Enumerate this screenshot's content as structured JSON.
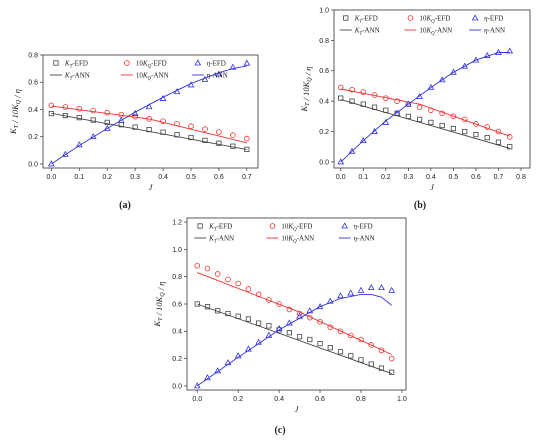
{
  "chart_data": [
    {
      "type": "scatter",
      "caption": "(a)",
      "xlabel": "J",
      "ylabel": "K_T / 10K_Q / η",
      "xlim": [
        -0.03,
        0.74
      ],
      "ylim": [
        -0.03,
        0.8
      ],
      "xticks": [
        "0.0",
        "0.1",
        "0.2",
        "0.3",
        "0.4",
        "0.5",
        "0.6",
        "0.7"
      ],
      "yticks": [
        "0.0",
        "0.2",
        "0.4",
        "0.6",
        "0.8"
      ],
      "grid": false,
      "legend": {
        "position": "top",
        "entries": [
          {
            "label": "K_T-EFD",
            "color": "#444444",
            "marker": "square"
          },
          {
            "label": "10K_Q-EFD",
            "color": "#ee3333",
            "marker": "circle"
          },
          {
            "label": "η-EFD",
            "color": "#3333dd",
            "marker": "triangle"
          },
          {
            "label": "K_T-ANN",
            "color": "#444444",
            "marker": "line"
          },
          {
            "label": "10K_Q-ANN",
            "color": "#ee3333",
            "marker": "line"
          },
          {
            "label": "η-ANN",
            "color": "#3333dd",
            "marker": "line"
          }
        ]
      },
      "series": [
        {
          "name": "K_T-EFD",
          "kind": "points",
          "marker": "square",
          "color": "#444444",
          "x": [
            0.0,
            0.05,
            0.1,
            0.15,
            0.2,
            0.25,
            0.3,
            0.35,
            0.4,
            0.45,
            0.5,
            0.55,
            0.6,
            0.65,
            0.7
          ],
          "y": [
            0.37,
            0.355,
            0.34,
            0.322,
            0.305,
            0.288,
            0.27,
            0.252,
            0.233,
            0.214,
            0.194,
            0.173,
            0.152,
            0.13,
            0.107
          ]
        },
        {
          "name": "K_T-ANN",
          "kind": "line",
          "color": "#444444",
          "x": [
            0.0,
            0.7
          ],
          "y": [
            0.372,
            0.105
          ]
        },
        {
          "name": "10K_Q-EFD",
          "kind": "points",
          "marker": "circle",
          "color": "#ee3333",
          "x": [
            0.0,
            0.05,
            0.1,
            0.15,
            0.2,
            0.25,
            0.3,
            0.35,
            0.4,
            0.45,
            0.5,
            0.55,
            0.6,
            0.65,
            0.7
          ],
          "y": [
            0.43,
            0.418,
            0.405,
            0.391,
            0.377,
            0.362,
            0.347,
            0.331,
            0.314,
            0.296,
            0.277,
            0.256,
            0.234,
            0.211,
            0.186
          ]
        },
        {
          "name": "10K_Q-ANN",
          "kind": "line",
          "color": "#ee3333",
          "x": [
            0.0,
            0.35,
            0.7
          ],
          "y": [
            0.425,
            0.33,
            0.155
          ]
        },
        {
          "name": "η-EFD",
          "kind": "points",
          "marker": "triangle",
          "color": "#3333dd",
          "x": [
            0.0,
            0.05,
            0.1,
            0.15,
            0.2,
            0.25,
            0.3,
            0.35,
            0.4,
            0.45,
            0.5,
            0.55,
            0.6,
            0.65,
            0.7
          ],
          "y": [
            0.0,
            0.07,
            0.14,
            0.2,
            0.26,
            0.32,
            0.37,
            0.42,
            0.48,
            0.53,
            0.58,
            0.62,
            0.66,
            0.71,
            0.74
          ]
        },
        {
          "name": "η-ANN",
          "kind": "line",
          "color": "#3333dd",
          "x": [
            0.0,
            0.1,
            0.2,
            0.3,
            0.4,
            0.5,
            0.6,
            0.65,
            0.7
          ],
          "y": [
            0.0,
            0.135,
            0.26,
            0.38,
            0.49,
            0.59,
            0.67,
            0.7,
            0.72
          ]
        }
      ]
    },
    {
      "type": "scatter",
      "caption": "(b)",
      "xlabel": "J",
      "ylabel": "K_T / 10K_Q / η",
      "xlim": [
        -0.03,
        0.84
      ],
      "ylim": [
        -0.04,
        1.0
      ],
      "xticks": [
        "0.0",
        "0.1",
        "0.2",
        "0.3",
        "0.4",
        "0.5",
        "0.6",
        "0.7",
        "0.8"
      ],
      "yticks": [
        "0.0",
        "0.2",
        "0.4",
        "0.6",
        "0.8",
        "1.0"
      ],
      "grid": false,
      "legend": {
        "position": "top",
        "entries": [
          {
            "label": "K_T-EFD",
            "color": "#444444",
            "marker": "square"
          },
          {
            "label": "10K_Q-EFD",
            "color": "#ee3333",
            "marker": "circle"
          },
          {
            "label": "η-EFD",
            "color": "#3333dd",
            "marker": "triangle"
          },
          {
            "label": "K_T-ANN",
            "color": "#444444",
            "marker": "line"
          },
          {
            "label": "10K_Q-ANN",
            "color": "#ee3333",
            "marker": "line"
          },
          {
            "label": "η-ANN",
            "color": "#3333dd",
            "marker": "line"
          }
        ]
      },
      "series": [
        {
          "name": "K_T-EFD",
          "kind": "points",
          "marker": "square",
          "color": "#444444",
          "x": [
            0.0,
            0.05,
            0.1,
            0.15,
            0.2,
            0.25,
            0.3,
            0.35,
            0.4,
            0.45,
            0.5,
            0.55,
            0.6,
            0.65,
            0.7,
            0.75
          ],
          "y": [
            0.42,
            0.4,
            0.38,
            0.36,
            0.34,
            0.32,
            0.3,
            0.28,
            0.26,
            0.24,
            0.22,
            0.2,
            0.18,
            0.16,
            0.13,
            0.1
          ]
        },
        {
          "name": "K_T-ANN",
          "kind": "line",
          "color": "#444444",
          "x": [
            0.0,
            0.75
          ],
          "y": [
            0.41,
            0.09
          ]
        },
        {
          "name": "10K_Q-EFD",
          "kind": "points",
          "marker": "circle",
          "color": "#ee3333",
          "x": [
            0.0,
            0.05,
            0.1,
            0.15,
            0.2,
            0.25,
            0.3,
            0.35,
            0.4,
            0.45,
            0.5,
            0.55,
            0.6,
            0.65,
            0.7,
            0.75
          ],
          "y": [
            0.49,
            0.475,
            0.46,
            0.44,
            0.42,
            0.4,
            0.38,
            0.36,
            0.34,
            0.32,
            0.3,
            0.28,
            0.25,
            0.23,
            0.2,
            0.165
          ]
        },
        {
          "name": "10K_Q-ANN",
          "kind": "line",
          "color": "#ee3333",
          "x": [
            0.0,
            0.35,
            0.75
          ],
          "y": [
            0.48,
            0.38,
            0.17
          ]
        },
        {
          "name": "η-EFD",
          "kind": "points",
          "marker": "triangle",
          "color": "#3333dd",
          "x": [
            0.0,
            0.05,
            0.1,
            0.15,
            0.2,
            0.25,
            0.3,
            0.35,
            0.4,
            0.45,
            0.5,
            0.55,
            0.6,
            0.65,
            0.7,
            0.75
          ],
          "y": [
            0.0,
            0.07,
            0.14,
            0.2,
            0.26,
            0.32,
            0.38,
            0.43,
            0.49,
            0.54,
            0.59,
            0.63,
            0.67,
            0.7,
            0.72,
            0.73
          ]
        },
        {
          "name": "η-ANN",
          "kind": "line",
          "color": "#3333dd",
          "x": [
            0.0,
            0.1,
            0.2,
            0.3,
            0.4,
            0.5,
            0.6,
            0.7,
            0.75
          ],
          "y": [
            0.0,
            0.14,
            0.27,
            0.38,
            0.49,
            0.59,
            0.67,
            0.72,
            0.72
          ]
        }
      ]
    },
    {
      "type": "scatter",
      "caption": "(c)",
      "xlabel": "J",
      "ylabel": "K_T / 10K_Q / η",
      "xlim": [
        -0.05,
        1.02
      ],
      "ylim": [
        -0.03,
        1.23
      ],
      "xticks": [
        "0.0",
        "0.2",
        "0.4",
        "0.6",
        "0.8",
        "1.0"
      ],
      "yticks": [
        "0.0",
        "0.2",
        "0.4",
        "0.6",
        "0.8",
        "1.0",
        "1.2"
      ],
      "grid": false,
      "legend": {
        "position": "top",
        "entries": [
          {
            "label": "K_T-EFD",
            "color": "#444444",
            "marker": "square"
          },
          {
            "label": "10K_Q-EFD",
            "color": "#ee3333",
            "marker": "circle"
          },
          {
            "label": "η-EFD",
            "color": "#3333dd",
            "marker": "triangle"
          },
          {
            "label": "K_T-ANN",
            "color": "#444444",
            "marker": "line"
          },
          {
            "label": "10K_Q-ANN",
            "color": "#ee3333",
            "marker": "line"
          },
          {
            "label": "η-ANN",
            "color": "#3333dd",
            "marker": "line"
          }
        ]
      },
      "series": [
        {
          "name": "K_T-EFD",
          "kind": "points",
          "marker": "square",
          "color": "#444444",
          "x": [
            0.0,
            0.05,
            0.1,
            0.15,
            0.2,
            0.25,
            0.3,
            0.35,
            0.4,
            0.45,
            0.5,
            0.55,
            0.6,
            0.65,
            0.7,
            0.75,
            0.8,
            0.85,
            0.9,
            0.95
          ],
          "y": [
            0.6,
            0.58,
            0.55,
            0.53,
            0.51,
            0.49,
            0.46,
            0.44,
            0.41,
            0.39,
            0.36,
            0.34,
            0.31,
            0.28,
            0.25,
            0.22,
            0.19,
            0.16,
            0.13,
            0.1
          ]
        },
        {
          "name": "K_T-ANN",
          "kind": "line",
          "color": "#444444",
          "x": [
            0.0,
            0.95
          ],
          "y": [
            0.6,
            0.09
          ]
        },
        {
          "name": "10K_Q-EFD",
          "kind": "points",
          "marker": "circle",
          "color": "#ee3333",
          "x": [
            0.0,
            0.05,
            0.1,
            0.15,
            0.2,
            0.25,
            0.3,
            0.35,
            0.4,
            0.45,
            0.5,
            0.55,
            0.6,
            0.65,
            0.7,
            0.75,
            0.8,
            0.85,
            0.9,
            0.95
          ],
          "y": [
            0.88,
            0.86,
            0.82,
            0.78,
            0.75,
            0.71,
            0.67,
            0.63,
            0.6,
            0.56,
            0.53,
            0.5,
            0.47,
            0.43,
            0.4,
            0.37,
            0.34,
            0.3,
            0.26,
            0.2
          ]
        },
        {
          "name": "10K_Q-ANN",
          "kind": "line",
          "color": "#ee3333",
          "x": [
            0.0,
            0.5,
            0.95
          ],
          "y": [
            0.83,
            0.54,
            0.23
          ]
        },
        {
          "name": "η-EFD",
          "kind": "points",
          "marker": "triangle",
          "color": "#3333dd",
          "x": [
            0.0,
            0.05,
            0.1,
            0.15,
            0.2,
            0.25,
            0.3,
            0.35,
            0.4,
            0.45,
            0.5,
            0.55,
            0.6,
            0.65,
            0.7,
            0.75,
            0.8,
            0.85,
            0.9,
            0.95
          ],
          "y": [
            0.0,
            0.06,
            0.11,
            0.17,
            0.22,
            0.27,
            0.32,
            0.37,
            0.42,
            0.46,
            0.51,
            0.55,
            0.58,
            0.62,
            0.66,
            0.68,
            0.7,
            0.72,
            0.72,
            0.7
          ]
        },
        {
          "name": "η-ANN",
          "kind": "line",
          "color": "#3333dd",
          "x": [
            0.0,
            0.2,
            0.4,
            0.6,
            0.7,
            0.8,
            0.85,
            0.9,
            0.95
          ],
          "y": [
            0.0,
            0.21,
            0.41,
            0.58,
            0.64,
            0.67,
            0.67,
            0.65,
            0.59
          ]
        }
      ]
    }
  ]
}
